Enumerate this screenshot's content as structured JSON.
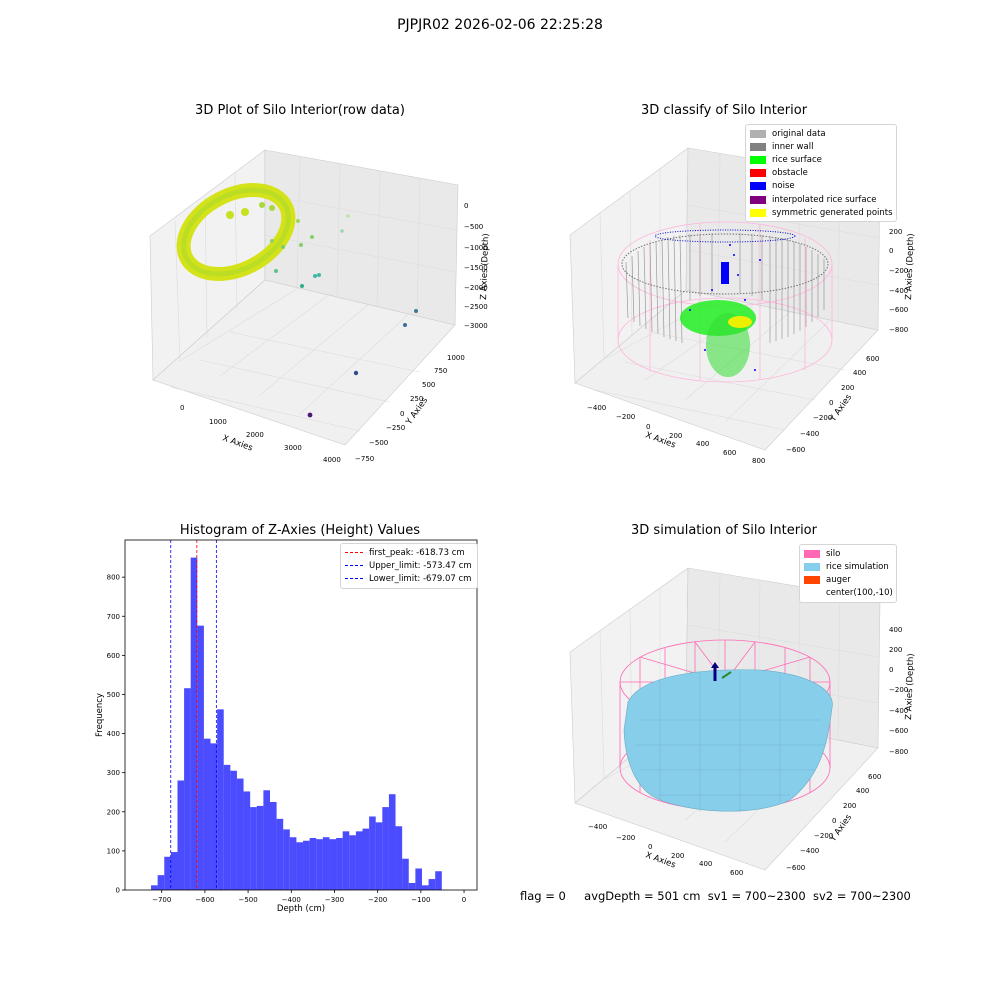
{
  "suptitle": "PJPJR02 2026-02-06 22:25:28",
  "panels": {
    "raw": {
      "title": "3D Plot of Silo Interior(row data)",
      "xlabel": "X Axies",
      "ylabel": "Y Axies",
      "zlabel": "Z Axies (Depth)",
      "xticks": [
        "0",
        "1000",
        "2000",
        "3000",
        "4000"
      ],
      "yticks": [
        "−750",
        "−500",
        "−250",
        "0",
        "250",
        "500",
        "750",
        "1000"
      ],
      "zticks": [
        "0",
        "−500",
        "−1000",
        "−1500",
        "−2000",
        "−2500",
        "−3000"
      ]
    },
    "classify": {
      "title": "3D classify of Silo Interior",
      "xlabel": "X Axies",
      "ylabel": "Y Axies",
      "zlabel": "Z Axies (Depth)",
      "xticks": [
        "−400",
        "−200",
        "0",
        "200",
        "400",
        "600",
        "800"
      ],
      "yticks": [
        "−600",
        "−400",
        "−200",
        "0",
        "200",
        "400",
        "600"
      ],
      "zticks": [
        "200",
        "0",
        "−200",
        "−400",
        "−600",
        "−800"
      ],
      "legend": [
        {
          "label": "original data",
          "color": "#b0b0b0"
        },
        {
          "label": "inner wall",
          "color": "#808080"
        },
        {
          "label": "rice surface",
          "color": "#00ff00"
        },
        {
          "label": "obstacle",
          "color": "#ff0000"
        },
        {
          "label": "noise",
          "color": "#0000ff"
        },
        {
          "label": "interpolated rice surface",
          "color": "#800080"
        },
        {
          "label": "symmetric generated points",
          "color": "#ffff00"
        }
      ]
    },
    "simulation": {
      "title": "3D simulation of Silo Interior",
      "xlabel": "X Axies",
      "ylabel": "Y Axies",
      "zlabel": "Z Axies (Depth)",
      "xticks": [
        "−400",
        "−200",
        "0",
        "200",
        "400",
        "600"
      ],
      "yticks": [
        "−600",
        "−400",
        "−200",
        "0",
        "200",
        "400",
        "600"
      ],
      "zticks": [
        "400",
        "200",
        "0",
        "−200",
        "−400",
        "−600",
        "−800"
      ],
      "legend": [
        {
          "label": "silo",
          "color": "#ff69b4"
        },
        {
          "label": "rice simulation",
          "color": "#87ceeb"
        },
        {
          "label": "auger",
          "color": "#ff4500"
        },
        {
          "label": "center(100,-10)",
          "color": ""
        }
      ]
    }
  },
  "chart_data": {
    "type": "bar",
    "title": "Histogram of Z-Axies (Height) Values",
    "xlabel": "Depth (cm)",
    "ylabel": "Frequency",
    "xlim": [
      -785,
      30
    ],
    "ylim": [
      0,
      895
    ],
    "xticks": [
      -700,
      -600,
      -500,
      -400,
      -300,
      -200,
      -100,
      0
    ],
    "yticks": [
      0,
      100,
      200,
      300,
      400,
      500,
      600,
      700,
      800
    ],
    "bin_start": -740,
    "bin_width": 15.3,
    "values": [
      0,
      12,
      38,
      85,
      97,
      280,
      516,
      850,
      676,
      387,
      375,
      462,
      320,
      305,
      285,
      252,
      212,
      215,
      255,
      225,
      182,
      155,
      135,
      122,
      126,
      133,
      130,
      135,
      130,
      133,
      150,
      140,
      150,
      157,
      188,
      173,
      212,
      245,
      163,
      80,
      18,
      55,
      12,
      28,
      48
    ],
    "bar_color": "#0000ff",
    "bar_alpha": 0.7,
    "vlines": [
      {
        "label": "first_peak: -618.73 cm",
        "x": -618.73,
        "color": "#ff0000"
      },
      {
        "label": "Upper_limit: -573.47 cm",
        "x": -573.47,
        "color": "#0000ff"
      },
      {
        "label": "Lower_limit: -679.07 cm",
        "x": -679.07,
        "color": "#0000ff"
      }
    ],
    "legend_loc": "upper right"
  },
  "footer": {
    "flag": "flag = 0",
    "avgDepth": "avgDepth = 501 cm",
    "sv1": "sv1 = 700~2300",
    "sv2": "sv2 = 700~2300"
  }
}
